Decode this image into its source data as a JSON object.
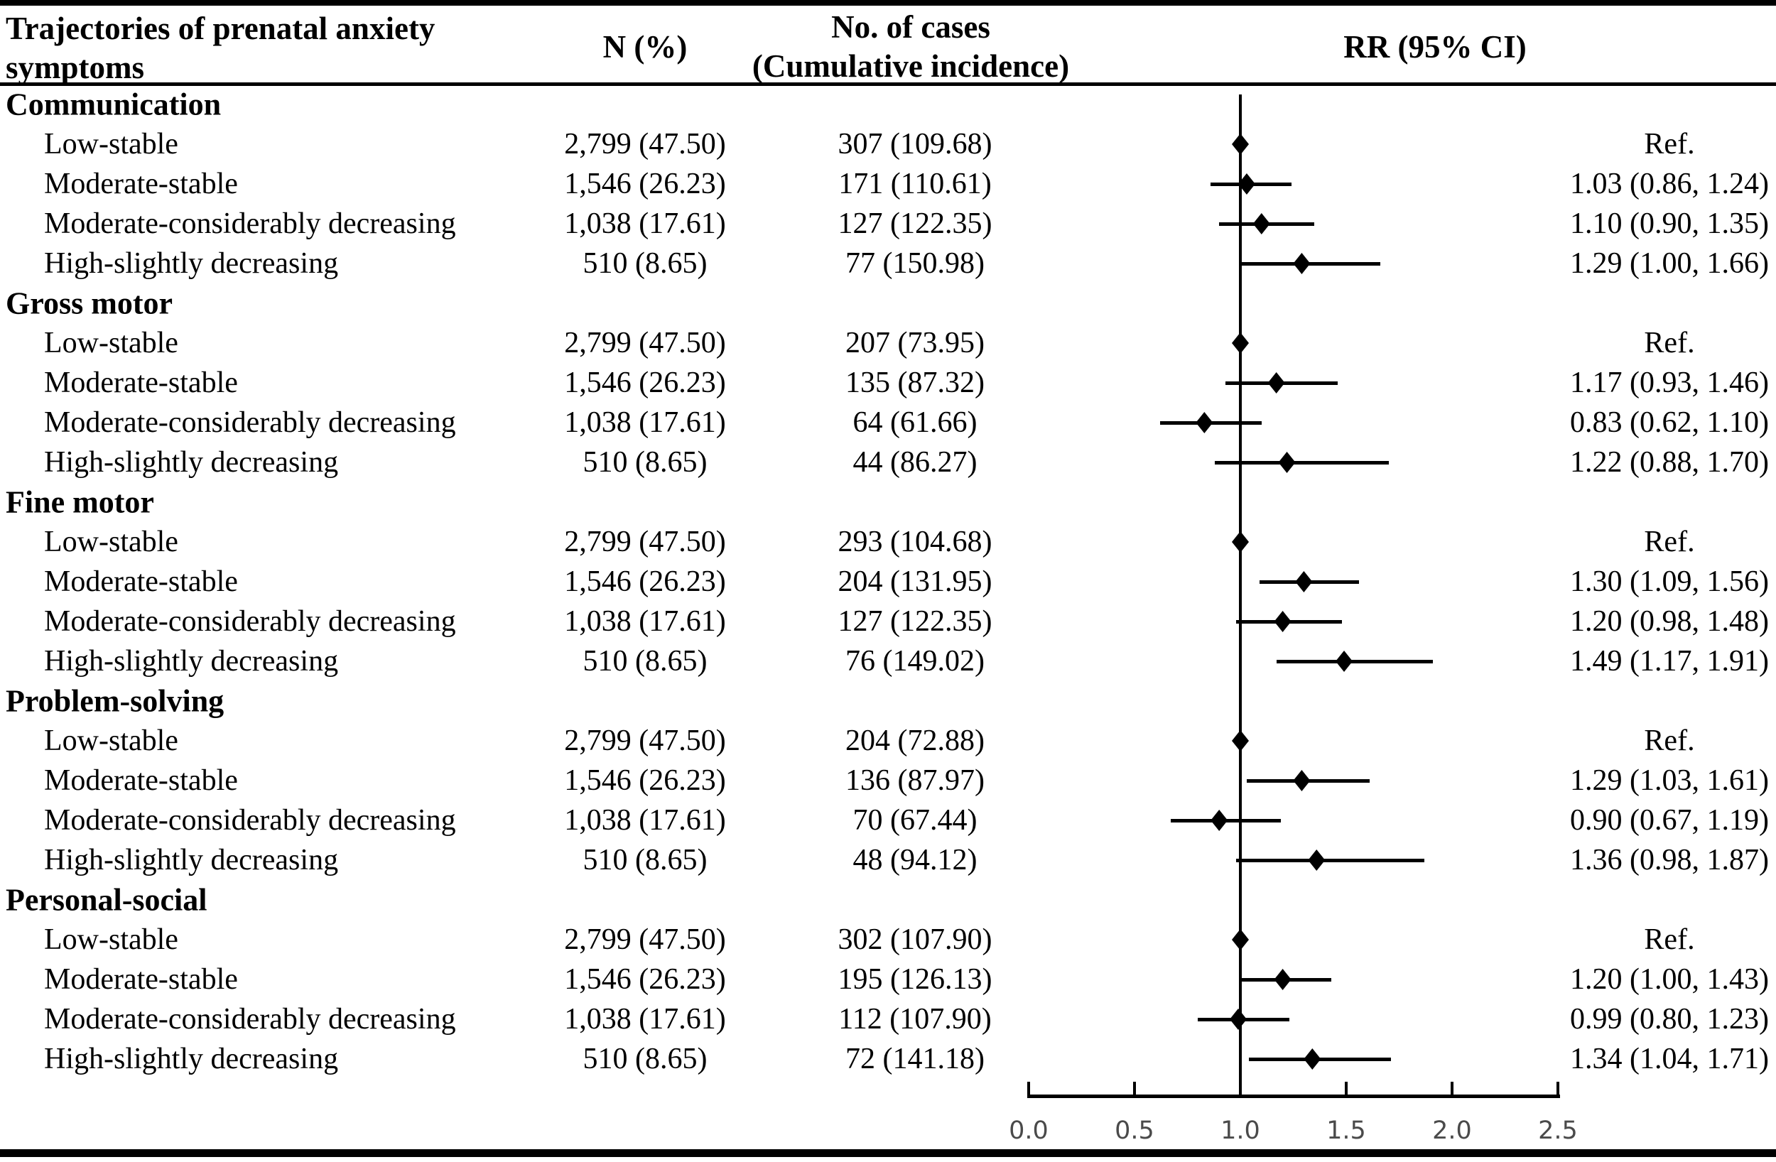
{
  "figure": {
    "columns": {
      "trajectory_header_line1": "Trajectories of prenatal anxiety",
      "trajectory_header_line2": "symptoms",
      "n_header": "N (%)",
      "cases_header_line1": "No. of cases",
      "cases_header_line2": "(Cumulative incidence)",
      "rr_header": "RR (95% CI)"
    }
  },
  "colors": {
    "text": "#000000",
    "marker": "#000000",
    "axis_tick_label": "#4a4a4a",
    "background": "#ffffff"
  },
  "chart_data": {
    "type": "scatter",
    "subtype": "forest-plot",
    "title": "",
    "xlabel": "",
    "ylabel": "",
    "legend": "none",
    "grid": false,
    "x_axis": {
      "min": 0.0,
      "max": 2.5,
      "tick_values": [
        0.0,
        0.5,
        1.0,
        1.5,
        2.0,
        2.5
      ],
      "tick_labels": [
        "0.0",
        "0.5",
        "1.0",
        "1.5",
        "2.0",
        "2.5"
      ],
      "reference_line": 1.0
    },
    "groups": [
      {
        "label": "Communication",
        "rows": [
          {
            "label": "Low-stable",
            "n": "2,799 (47.50)",
            "cases": "307 (109.68)",
            "rr_label": "Ref.",
            "is_ref": true,
            "rr": 1.0,
            "lo": null,
            "hi": null
          },
          {
            "label": "Moderate-stable",
            "n": "1,546 (26.23)",
            "cases": "171 (110.61)",
            "rr_label": "1.03 (0.86, 1.24)",
            "is_ref": false,
            "rr": 1.03,
            "lo": 0.86,
            "hi": 1.24
          },
          {
            "label": "Moderate-considerably decreasing",
            "n": "1,038 (17.61)",
            "cases": "127 (122.35)",
            "rr_label": "1.10 (0.90, 1.35)",
            "is_ref": false,
            "rr": 1.1,
            "lo": 0.9,
            "hi": 1.35
          },
          {
            "label": "High-slightly decreasing",
            "n": "510 (8.65)",
            "cases": "77 (150.98)",
            "rr_label": "1.29 (1.00, 1.66)",
            "is_ref": false,
            "rr": 1.29,
            "lo": 1.0,
            "hi": 1.66
          }
        ]
      },
      {
        "label": "Gross motor",
        "rows": [
          {
            "label": "Low-stable",
            "n": "2,799 (47.50)",
            "cases": "207 (73.95)",
            "rr_label": "Ref.",
            "is_ref": true,
            "rr": 1.0,
            "lo": null,
            "hi": null
          },
          {
            "label": "Moderate-stable",
            "n": "1,546 (26.23)",
            "cases": "135 (87.32)",
            "rr_label": "1.17 (0.93, 1.46)",
            "is_ref": false,
            "rr": 1.17,
            "lo": 0.93,
            "hi": 1.46
          },
          {
            "label": "Moderate-considerably decreasing",
            "n": "1,038 (17.61)",
            "cases": "64 (61.66)",
            "rr_label": "0.83 (0.62, 1.10)",
            "is_ref": false,
            "rr": 0.83,
            "lo": 0.62,
            "hi": 1.1
          },
          {
            "label": "High-slightly decreasing",
            "n": "510 (8.65)",
            "cases": "44 (86.27)",
            "rr_label": "1.22 (0.88, 1.70)",
            "is_ref": false,
            "rr": 1.22,
            "lo": 0.88,
            "hi": 1.7
          }
        ]
      },
      {
        "label": "Fine motor",
        "rows": [
          {
            "label": "Low-stable",
            "n": "2,799 (47.50)",
            "cases": "293 (104.68)",
            "rr_label": "Ref.",
            "is_ref": true,
            "rr": 1.0,
            "lo": null,
            "hi": null
          },
          {
            "label": "Moderate-stable",
            "n": "1,546 (26.23)",
            "cases": "204 (131.95)",
            "rr_label": "1.30 (1.09, 1.56)",
            "is_ref": false,
            "rr": 1.3,
            "lo": 1.09,
            "hi": 1.56
          },
          {
            "label": "Moderate-considerably decreasing",
            "n": "1,038 (17.61)",
            "cases": "127 (122.35)",
            "rr_label": "1.20 (0.98, 1.48)",
            "is_ref": false,
            "rr": 1.2,
            "lo": 0.98,
            "hi": 1.48
          },
          {
            "label": "High-slightly decreasing",
            "n": "510 (8.65)",
            "cases": "76 (149.02)",
            "rr_label": "1.49 (1.17, 1.91)",
            "is_ref": false,
            "rr": 1.49,
            "lo": 1.17,
            "hi": 1.91
          }
        ]
      },
      {
        "label": "Problem-solving",
        "rows": [
          {
            "label": "Low-stable",
            "n": "2,799 (47.50)",
            "cases": "204 (72.88)",
            "rr_label": "Ref.",
            "is_ref": true,
            "rr": 1.0,
            "lo": null,
            "hi": null
          },
          {
            "label": "Moderate-stable",
            "n": "1,546 (26.23)",
            "cases": "136 (87.97)",
            "rr_label": "1.29 (1.03, 1.61)",
            "is_ref": false,
            "rr": 1.29,
            "lo": 1.03,
            "hi": 1.61
          },
          {
            "label": "Moderate-considerably decreasing",
            "n": "1,038 (17.61)",
            "cases": "70 (67.44)",
            "rr_label": "0.90 (0.67, 1.19)",
            "is_ref": false,
            "rr": 0.9,
            "lo": 0.67,
            "hi": 1.19
          },
          {
            "label": "High-slightly decreasing",
            "n": "510 (8.65)",
            "cases": "48 (94.12)",
            "rr_label": "1.36 (0.98, 1.87)",
            "is_ref": false,
            "rr": 1.36,
            "lo": 0.98,
            "hi": 1.87
          }
        ]
      },
      {
        "label": "Personal-social",
        "rows": [
          {
            "label": "Low-stable",
            "n": "2,799 (47.50)",
            "cases": "302 (107.90)",
            "rr_label": "Ref.",
            "is_ref": true,
            "rr": 1.0,
            "lo": null,
            "hi": null
          },
          {
            "label": "Moderate-stable",
            "n": "1,546 (26.23)",
            "cases": "195 (126.13)",
            "rr_label": "1.20 (1.00, 1.43)",
            "is_ref": false,
            "rr": 1.2,
            "lo": 1.0,
            "hi": 1.43
          },
          {
            "label": "Moderate-considerably decreasing",
            "n": "1,038 (17.61)",
            "cases": "112 (107.90)",
            "rr_label": "0.99 (0.80, 1.23)",
            "is_ref": false,
            "rr": 0.99,
            "lo": 0.8,
            "hi": 1.23
          },
          {
            "label": "High-slightly decreasing",
            "n": "510 (8.65)",
            "cases": "72 (141.18)",
            "rr_label": "1.34 (1.04, 1.71)",
            "is_ref": false,
            "rr": 1.34,
            "lo": 1.04,
            "hi": 1.71
          }
        ]
      }
    ]
  }
}
